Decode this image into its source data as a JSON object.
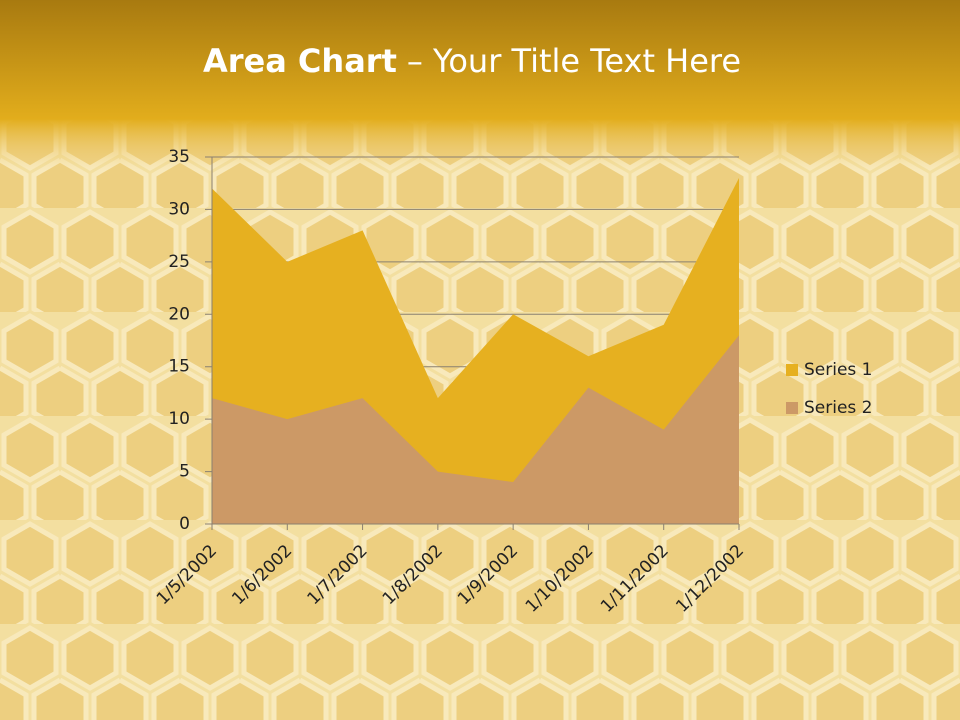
{
  "header": {
    "bold": "Area Chart",
    "rest": "– Your Title Text Here"
  },
  "chart_data": {
    "type": "area",
    "categories": [
      "1/5/2002",
      "1/6/2002",
      "1/7/2002",
      "1/8/2002",
      "1/9/2002",
      "1/10/2002",
      "1/11/2002",
      "1/12/2002"
    ],
    "series": [
      {
        "name": "Series 1",
        "color": "#e6b020",
        "values": [
          32,
          25,
          28,
          12,
          20,
          16,
          19,
          33
        ]
      },
      {
        "name": "Series 2",
        "color": "#cc9966",
        "values": [
          12,
          10,
          12,
          5,
          4,
          13,
          9,
          18
        ]
      }
    ],
    "ylim": [
      0,
      35
    ],
    "yticks": [
      0,
      5,
      10,
      15,
      20,
      25,
      30,
      35
    ],
    "grid": true,
    "legend": "right"
  }
}
